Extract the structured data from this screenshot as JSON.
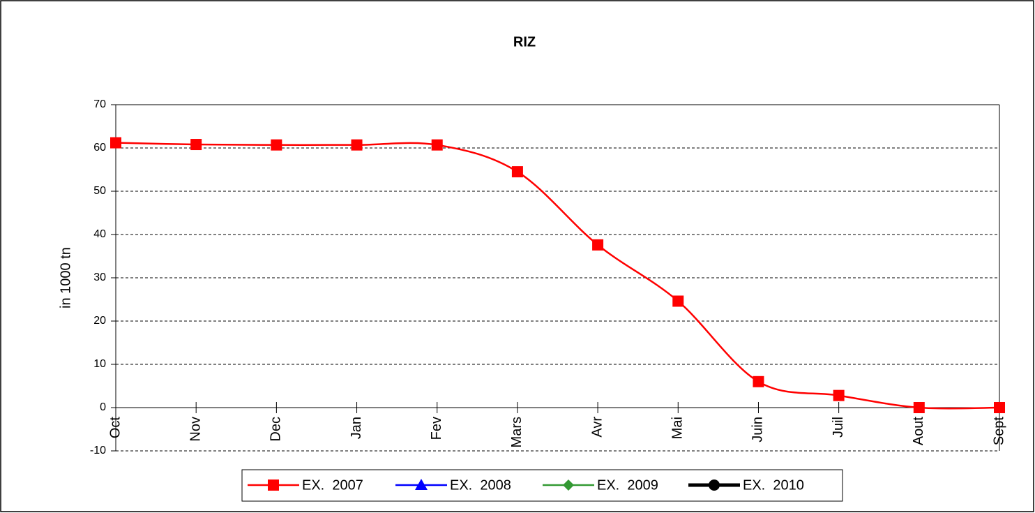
{
  "chart_data": {
    "type": "line",
    "title": "RIZ",
    "y_label": "in 1000 tn",
    "categories": [
      "Oct",
      "Nov",
      "Dec",
      "Jan",
      "Fev",
      "Mars",
      "Avr",
      "Mai",
      "Juin",
      "Juil",
      "Aout",
      "Sept"
    ],
    "series": [
      {
        "name": "EX.  2007",
        "color": "#ff0000",
        "marker": "square",
        "values": [
          61.2,
          60.8,
          60.7,
          60.7,
          60.7,
          54.5,
          37.6,
          24.6,
          6.0,
          2.8,
          0,
          0
        ]
      },
      {
        "name": "EX.  2008",
        "color": "#0000ff",
        "marker": "triangle",
        "values": [
          null,
          null,
          null,
          null,
          null,
          null,
          null,
          null,
          null,
          null,
          null,
          null
        ]
      },
      {
        "name": "EX.  2009",
        "color": "#339933",
        "marker": "diamond",
        "values": [
          null,
          null,
          null,
          null,
          null,
          null,
          null,
          null,
          null,
          null,
          null,
          null
        ]
      },
      {
        "name": "EX.  2010",
        "color": "#000000",
        "marker": "circle",
        "values": [
          null,
          null,
          null,
          null,
          null,
          null,
          null,
          null,
          null,
          null,
          null,
          null
        ]
      }
    ],
    "ylim": [
      -10,
      70
    ],
    "yticks": [
      -10,
      0,
      10,
      20,
      30,
      40,
      50,
      60,
      70
    ],
    "grid": true,
    "smooth": true,
    "legend": "bottom"
  }
}
